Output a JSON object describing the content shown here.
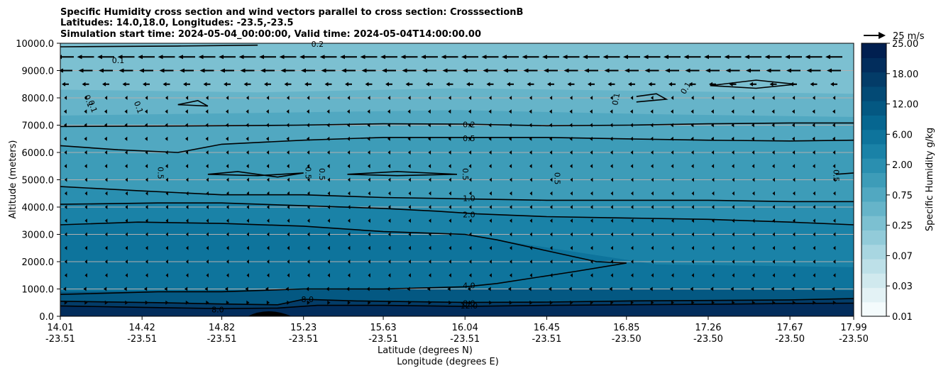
{
  "chart_data": {
    "type": "contourf-cross-section",
    "title_lines": [
      "Specific Humidity cross section and wind vectors parallel to cross section: CrosssectionB",
      "Latitudes: 14.0,18.0, Longitudes: -23.5,-23.5",
      "Simulation start time: 2024-05-04_00:00:00, Valid time: 2024-05-04T14:00:00.00"
    ],
    "xlabel_lat": "Latitude (degrees N)",
    "xlabel_lon": "Longitude (degrees E)",
    "ylabel": "Altitude (meters)",
    "x_ticks_lat": [
      "14.01",
      "14.42",
      "14.82",
      "15.23",
      "15.63",
      "16.04",
      "16.45",
      "16.85",
      "17.26",
      "17.67",
      "17.99"
    ],
    "x_ticks_lon": [
      "-23.51",
      "-23.51",
      "-23.51",
      "-23.51",
      "-23.51",
      "-23.51",
      "-23.51",
      "-23.50",
      "-23.50",
      "-23.50",
      "-23.50"
    ],
    "y_ticks": [
      "10000.0",
      "9000.0",
      "8000.0",
      "7000.0",
      "6000.0",
      "5000.0",
      "4000.0",
      "3000.0",
      "2000.0",
      "1000.0",
      "0.0"
    ],
    "y_tick_values": [
      10000,
      9000,
      8000,
      7000,
      6000,
      5000,
      4000,
      3000,
      2000,
      1000,
      0
    ],
    "ylim": [
      0,
      10000
    ],
    "xlim": [
      14.01,
      17.99
    ],
    "grid": "horizontal",
    "colorbar": {
      "label": "Specific Humidity g/kg",
      "tick_labels": [
        "0.01",
        "0.03",
        "0.07",
        "0.25",
        "0.75",
        "2.00",
        "6.00",
        "12.00",
        "18.00",
        "25.00"
      ],
      "levels": [
        0.01,
        0.02,
        0.03,
        0.05,
        0.07,
        0.1,
        0.25,
        0.5,
        0.75,
        1.0,
        2.0,
        4.0,
        6.0,
        8.0,
        12.0,
        15.0,
        18.0,
        22.0,
        25.0
      ],
      "colors": [
        "#f4fbfc",
        "#e3f2f5",
        "#d0e9ee",
        "#bde0e8",
        "#a8d6e1",
        "#92cbd9",
        "#7cc0d1",
        "#66b4c9",
        "#51a8c1",
        "#3d9cb8",
        "#2a8fb0",
        "#1a82a7",
        "#0e749c",
        "#066690",
        "#045882",
        "#034a75",
        "#033c68",
        "#022d5c",
        "#011f50"
      ]
    },
    "contour_labels": [
      "0.1",
      "0.1",
      "0.1",
      "0.1",
      "0.1",
      "0.1",
      "0.1",
      "0.2",
      "0.5",
      "0.5",
      "0.5",
      "0.5",
      "0.5",
      "0.5",
      "0.5",
      "1.0",
      "2.0",
      "4.0",
      "8.0",
      "8.0",
      "8.0",
      "12.0"
    ],
    "contour_lines": [
      {
        "level": 0.1,
        "points": [
          [
            14.01,
            9870
          ],
          [
            14.6,
            9900
          ],
          [
            15.0,
            9930
          ]
        ]
      },
      {
        "level": 0.1,
        "points": [
          [
            17.27,
            8450
          ],
          [
            17.5,
            8650
          ],
          [
            17.7,
            8500
          ],
          [
            17.5,
            8350
          ],
          [
            17.27,
            8450
          ]
        ]
      },
      {
        "level": 0.1,
        "points": [
          [
            14.6,
            7750
          ],
          [
            14.7,
            7900
          ],
          [
            14.75,
            7700
          ],
          [
            14.6,
            7750
          ]
        ]
      },
      {
        "level": 0.1,
        "points": [
          [
            16.9,
            8050
          ],
          [
            17.0,
            8150
          ],
          [
            17.05,
            7950
          ],
          [
            16.9,
            7850
          ]
        ]
      },
      {
        "level": 0.2,
        "points": [
          [
            14.01,
            6950
          ],
          [
            14.6,
            6970
          ],
          [
            15.2,
            7000
          ],
          [
            15.63,
            7050
          ],
          [
            16.04,
            7040
          ],
          [
            16.45,
            6980
          ],
          [
            16.85,
            7000
          ],
          [
            17.26,
            7050
          ],
          [
            17.67,
            7080
          ],
          [
            17.99,
            7080
          ]
        ]
      },
      {
        "level": 0.5,
        "points": [
          [
            14.01,
            6250
          ],
          [
            14.3,
            6100
          ],
          [
            14.6,
            6000
          ],
          [
            14.82,
            6300
          ],
          [
            15.23,
            6450
          ],
          [
            15.63,
            6550
          ],
          [
            16.04,
            6550
          ],
          [
            16.45,
            6550
          ],
          [
            16.85,
            6500
          ],
          [
            17.26,
            6450
          ],
          [
            17.67,
            6420
          ],
          [
            17.99,
            6450
          ]
        ]
      },
      {
        "level": 0.5,
        "points": [
          [
            14.75,
            5200
          ],
          [
            14.9,
            5300
          ],
          [
            15.1,
            5100
          ],
          [
            15.23,
            5250
          ],
          [
            15.0,
            5150
          ],
          [
            14.75,
            5200
          ]
        ]
      },
      {
        "level": 0.5,
        "points": [
          [
            15.45,
            5200
          ],
          [
            15.7,
            5300
          ],
          [
            16.0,
            5200
          ],
          [
            15.7,
            5150
          ],
          [
            15.45,
            5200
          ]
        ]
      },
      {
        "level": 0.5,
        "points": [
          [
            17.9,
            5200
          ],
          [
            17.99,
            5250
          ]
        ]
      },
      {
        "level": 1.0,
        "points": [
          [
            14.01,
            4750
          ],
          [
            14.4,
            4600
          ],
          [
            14.82,
            4450
          ],
          [
            15.23,
            4450
          ],
          [
            15.63,
            4350
          ],
          [
            16.04,
            4300
          ],
          [
            16.45,
            4250
          ],
          [
            16.85,
            4250
          ],
          [
            17.26,
            4250
          ],
          [
            17.67,
            4200
          ],
          [
            17.99,
            4200
          ]
        ]
      },
      {
        "level": 2.0,
        "points": [
          [
            14.01,
            4100
          ],
          [
            14.5,
            4150
          ],
          [
            14.82,
            4150
          ],
          [
            15.23,
            4050
          ],
          [
            15.63,
            3950
          ],
          [
            15.9,
            3850
          ],
          [
            16.1,
            3750
          ],
          [
            16.45,
            3650
          ],
          [
            16.85,
            3600
          ],
          [
            17.26,
            3550
          ],
          [
            17.67,
            3450
          ],
          [
            17.99,
            3350
          ]
        ]
      },
      {
        "level": 4.0,
        "points": [
          [
            14.01,
            3350
          ],
          [
            14.4,
            3450
          ],
          [
            14.82,
            3400
          ],
          [
            15.23,
            3300
          ],
          [
            15.63,
            3100
          ],
          [
            16.04,
            3000
          ],
          [
            16.2,
            2800
          ],
          [
            16.45,
            2400
          ],
          [
            16.7,
            2000
          ],
          [
            16.85,
            1950
          ],
          [
            16.6,
            1650
          ],
          [
            16.2,
            1200
          ],
          [
            16.04,
            1080
          ],
          [
            15.63,
            1000
          ],
          [
            15.23,
            1000
          ],
          [
            14.82,
            900
          ],
          [
            14.5,
            900
          ],
          [
            14.01,
            800
          ]
        ]
      },
      {
        "level": 8.0,
        "points": [
          [
            14.01,
            550
          ],
          [
            14.5,
            500
          ],
          [
            14.82,
            450
          ],
          [
            15.1,
            420
          ],
          [
            15.23,
            620
          ],
          [
            15.5,
            560
          ],
          [
            16.04,
            510
          ],
          [
            16.45,
            520
          ],
          [
            16.85,
            560
          ],
          [
            17.26,
            580
          ],
          [
            17.67,
            600
          ],
          [
            17.99,
            650
          ]
        ]
      },
      {
        "level": 12.0,
        "points": [
          [
            14.01,
            380
          ],
          [
            14.4,
            330
          ],
          [
            14.82,
            280
          ],
          [
            15.1,
            300
          ],
          [
            15.3,
            400
          ],
          [
            15.63,
            400
          ],
          [
            16.04,
            360
          ],
          [
            16.45,
            400
          ],
          [
            16.85,
            420
          ],
          [
            17.26,
            440
          ],
          [
            17.67,
            470
          ],
          [
            17.99,
            480
          ]
        ]
      }
    ],
    "quiver_key": {
      "label": "25 m/s",
      "speed": 25
    }
  }
}
